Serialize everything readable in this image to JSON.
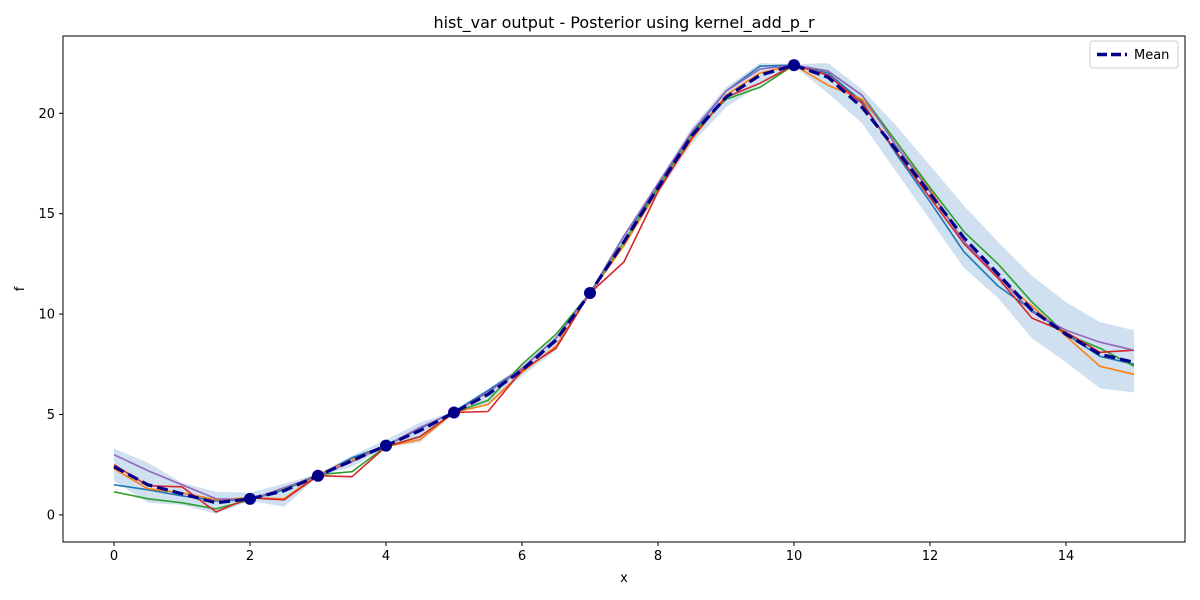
{
  "chart_data": {
    "type": "line",
    "title": "hist_var output - Posterior using kernel_add_p_r",
    "xlabel": "x",
    "ylabel": "f",
    "xlim": [
      -0.75,
      15.75
    ],
    "ylim": [
      -1.35,
      23.85
    ],
    "x_ticks": [
      0,
      2,
      4,
      6,
      8,
      10,
      12,
      14
    ],
    "y_ticks": [
      0,
      5,
      10,
      15,
      20
    ],
    "grid": false,
    "legend": {
      "placement": "top-right",
      "entries": [
        "Mean"
      ]
    },
    "colors": {
      "mean": "#00008b",
      "band": "#cfe0f1",
      "samples": [
        "#1f77b4",
        "#ff7f0e",
        "#2ca02c",
        "#d62728",
        "#9467bd"
      ]
    },
    "x": [
      0,
      0.5,
      1,
      1.5,
      2,
      2.5,
      3,
      3.5,
      4,
      4.5,
      5,
      5.5,
      6,
      6.5,
      7,
      7.5,
      8,
      8.5,
      9,
      9.5,
      10,
      10.5,
      11,
      11.5,
      12,
      12.5,
      13,
      13.5,
      14,
      14.5,
      15
    ],
    "observations": [
      {
        "x": 2,
        "y": 0.8
      },
      {
        "x": 3,
        "y": 1.95
      },
      {
        "x": 4,
        "y": 3.45
      },
      {
        "x": 5,
        "y": 5.1
      },
      {
        "x": 7,
        "y": 11.05
      },
      {
        "x": 10,
        "y": 22.4
      }
    ],
    "series": [
      {
        "name": "Mean",
        "role": "mean",
        "values": [
          2.4,
          1.5,
          1.05,
          0.6,
          0.8,
          1.2,
          1.95,
          2.7,
          3.45,
          4.2,
          5.1,
          6.0,
          7.2,
          8.7,
          11.05,
          13.6,
          16.3,
          18.9,
          20.8,
          21.9,
          22.4,
          21.8,
          20.3,
          18.2,
          16.0,
          13.8,
          12.0,
          10.2,
          9.0,
          8.0,
          7.6
        ]
      },
      {
        "role": "upper",
        "values": [
          3.3,
          2.6,
          1.6,
          1.15,
          1.1,
          1.55,
          2.05,
          2.95,
          3.75,
          4.6,
          5.15,
          6.25,
          7.45,
          8.95,
          11.1,
          13.9,
          16.6,
          19.3,
          21.3,
          22.5,
          22.45,
          22.5,
          21.2,
          19.4,
          17.4,
          15.4,
          13.6,
          11.9,
          10.6,
          9.6,
          9.2
        ]
      },
      {
        "role": "lower",
        "values": [
          1.7,
          0.6,
          0.5,
          0.05,
          0.7,
          0.4,
          1.9,
          2.4,
          3.4,
          3.6,
          5.05,
          5.5,
          6.9,
          8.2,
          11.0,
          13.4,
          16.0,
          18.5,
          20.3,
          21.4,
          22.35,
          21.0,
          19.5,
          17.1,
          14.7,
          12.3,
          10.8,
          8.8,
          7.6,
          6.3,
          6.1
        ]
      },
      {
        "role": "sample",
        "values": [
          1.5,
          1.25,
          0.95,
          0.7,
          0.75,
          1.25,
          1.95,
          2.85,
          3.45,
          4.3,
          5.15,
          6.2,
          7.3,
          8.8,
          11.05,
          13.9,
          16.3,
          19.0,
          21.1,
          22.35,
          22.4,
          22.0,
          20.6,
          18.0,
          15.6,
          13.1,
          11.4,
          10.2,
          9.0,
          7.9,
          7.5
        ]
      },
      {
        "role": "sample",
        "values": [
          2.3,
          1.3,
          1.1,
          0.75,
          0.85,
          0.8,
          2.0,
          2.75,
          3.4,
          3.75,
          5.1,
          5.5,
          7.1,
          8.4,
          11.05,
          13.4,
          16.2,
          18.7,
          20.9,
          22.0,
          22.4,
          21.4,
          20.7,
          18.6,
          16.2,
          13.6,
          11.8,
          10.4,
          8.9,
          7.4,
          7.0
        ]
      },
      {
        "role": "sample",
        "values": [
          1.15,
          0.8,
          0.6,
          0.3,
          0.75,
          1.3,
          2.0,
          2.15,
          3.4,
          3.9,
          5.1,
          5.7,
          7.5,
          9.0,
          11.05,
          13.6,
          16.3,
          19.0,
          20.7,
          21.3,
          22.4,
          22.1,
          20.9,
          18.6,
          16.3,
          14.1,
          12.5,
          10.6,
          9.0,
          8.3,
          7.4
        ]
      },
      {
        "role": "sample",
        "values": [
          2.5,
          1.45,
          1.4,
          0.15,
          0.85,
          0.75,
          1.95,
          1.9,
          3.4,
          3.9,
          5.1,
          5.15,
          7.2,
          8.3,
          11.05,
          12.6,
          16.1,
          18.8,
          20.8,
          21.5,
          22.4,
          21.9,
          20.5,
          18.1,
          15.8,
          13.5,
          11.8,
          9.8,
          9.1,
          8.1,
          8.2
        ]
      },
      {
        "role": "sample",
        "values": [
          3.0,
          2.2,
          1.5,
          0.8,
          0.75,
          1.35,
          1.95,
          2.65,
          3.45,
          4.35,
          5.1,
          6.1,
          7.3,
          8.8,
          11.05,
          13.9,
          16.5,
          19.1,
          21.1,
          22.2,
          22.4,
          22.1,
          20.9,
          18.4,
          16.1,
          13.6,
          11.9,
          10.1,
          9.2,
          8.6,
          8.2
        ]
      }
    ]
  }
}
